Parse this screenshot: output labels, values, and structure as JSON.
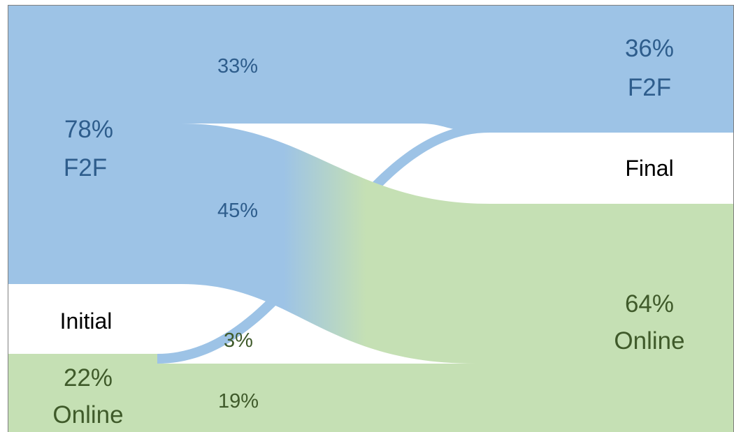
{
  "colors": {
    "f2f": "#9dc3e6",
    "online": "#c5e0b4",
    "f2f_text": "#2e5d8c",
    "online_text": "#3f5a2a",
    "label_text": "#000000",
    "border": "#7f7f7f"
  },
  "nodes": {
    "initial": {
      "stage_label": "Initial",
      "f2f": {
        "percent": "78%",
        "mode": "F2F",
        "share": 78
      },
      "online": {
        "percent": "22%",
        "mode": "Online",
        "share": 22
      }
    },
    "final": {
      "stage_label": "Final",
      "f2f": {
        "percent": "36%",
        "mode": "F2F",
        "share": 36
      },
      "online": {
        "percent": "64%",
        "mode": "Online",
        "share": 64
      }
    }
  },
  "flows": [
    {
      "id": "f2f-to-f2f",
      "from": "F2F",
      "to": "F2F",
      "label": "33%",
      "share": 33
    },
    {
      "id": "f2f-to-online",
      "from": "F2F",
      "to": "Online",
      "label": "45%",
      "share": 45
    },
    {
      "id": "online-to-f2f",
      "from": "Online",
      "to": "F2F",
      "label": "3%",
      "share": 3
    },
    {
      "id": "online-to-online",
      "from": "Online",
      "to": "Online",
      "label": "19%",
      "share": 19
    }
  ]
}
